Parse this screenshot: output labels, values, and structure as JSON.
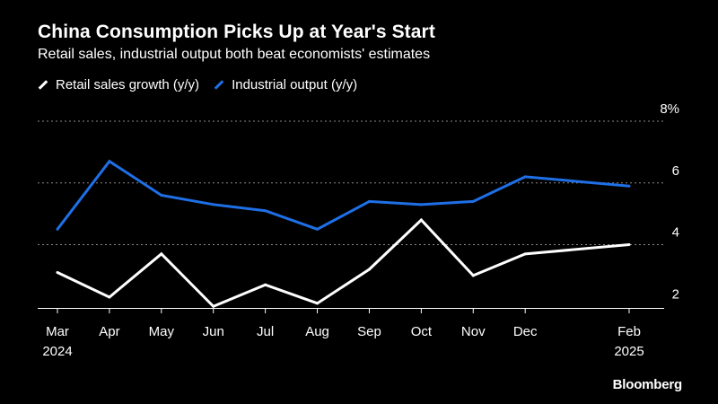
{
  "chart_data": {
    "type": "line",
    "title": "China Consumption Picks Up at Year's Start",
    "subtitle": "Retail sales, industrial output both beat economists' estimates",
    "categories": [
      "Mar",
      "Apr",
      "May",
      "Jun",
      "Jul",
      "Aug",
      "Sep",
      "Oct",
      "Nov",
      "Dec",
      "Feb"
    ],
    "category_sublabels": {
      "Mar": "2024",
      "Feb": "2025"
    },
    "x_months": [
      0,
      1,
      2,
      3,
      4,
      5,
      6,
      7,
      8,
      9,
      11
    ],
    "series": [
      {
        "name": "Retail sales growth (y/y)",
        "color": "#ffffff",
        "values": [
          3.1,
          2.3,
          3.7,
          2.0,
          2.7,
          2.1,
          3.2,
          4.8,
          3.0,
          3.7,
          4.0
        ]
      },
      {
        "name": "Industrial output (y/y)",
        "color": "#1f6fe6",
        "values": [
          4.5,
          6.7,
          5.6,
          5.3,
          5.1,
          4.5,
          5.4,
          5.3,
          5.4,
          6.2,
          5.9
        ]
      }
    ],
    "y_ticks": [
      {
        "value": 2,
        "label": "2"
      },
      {
        "value": 4,
        "label": "4"
      },
      {
        "value": 6,
        "label": "6"
      },
      {
        "value": 8,
        "label": "8%"
      }
    ],
    "ylim": [
      1.95,
      8.0
    ],
    "xlabel": "",
    "ylabel": "",
    "grid": true,
    "source": "Bloomberg"
  }
}
